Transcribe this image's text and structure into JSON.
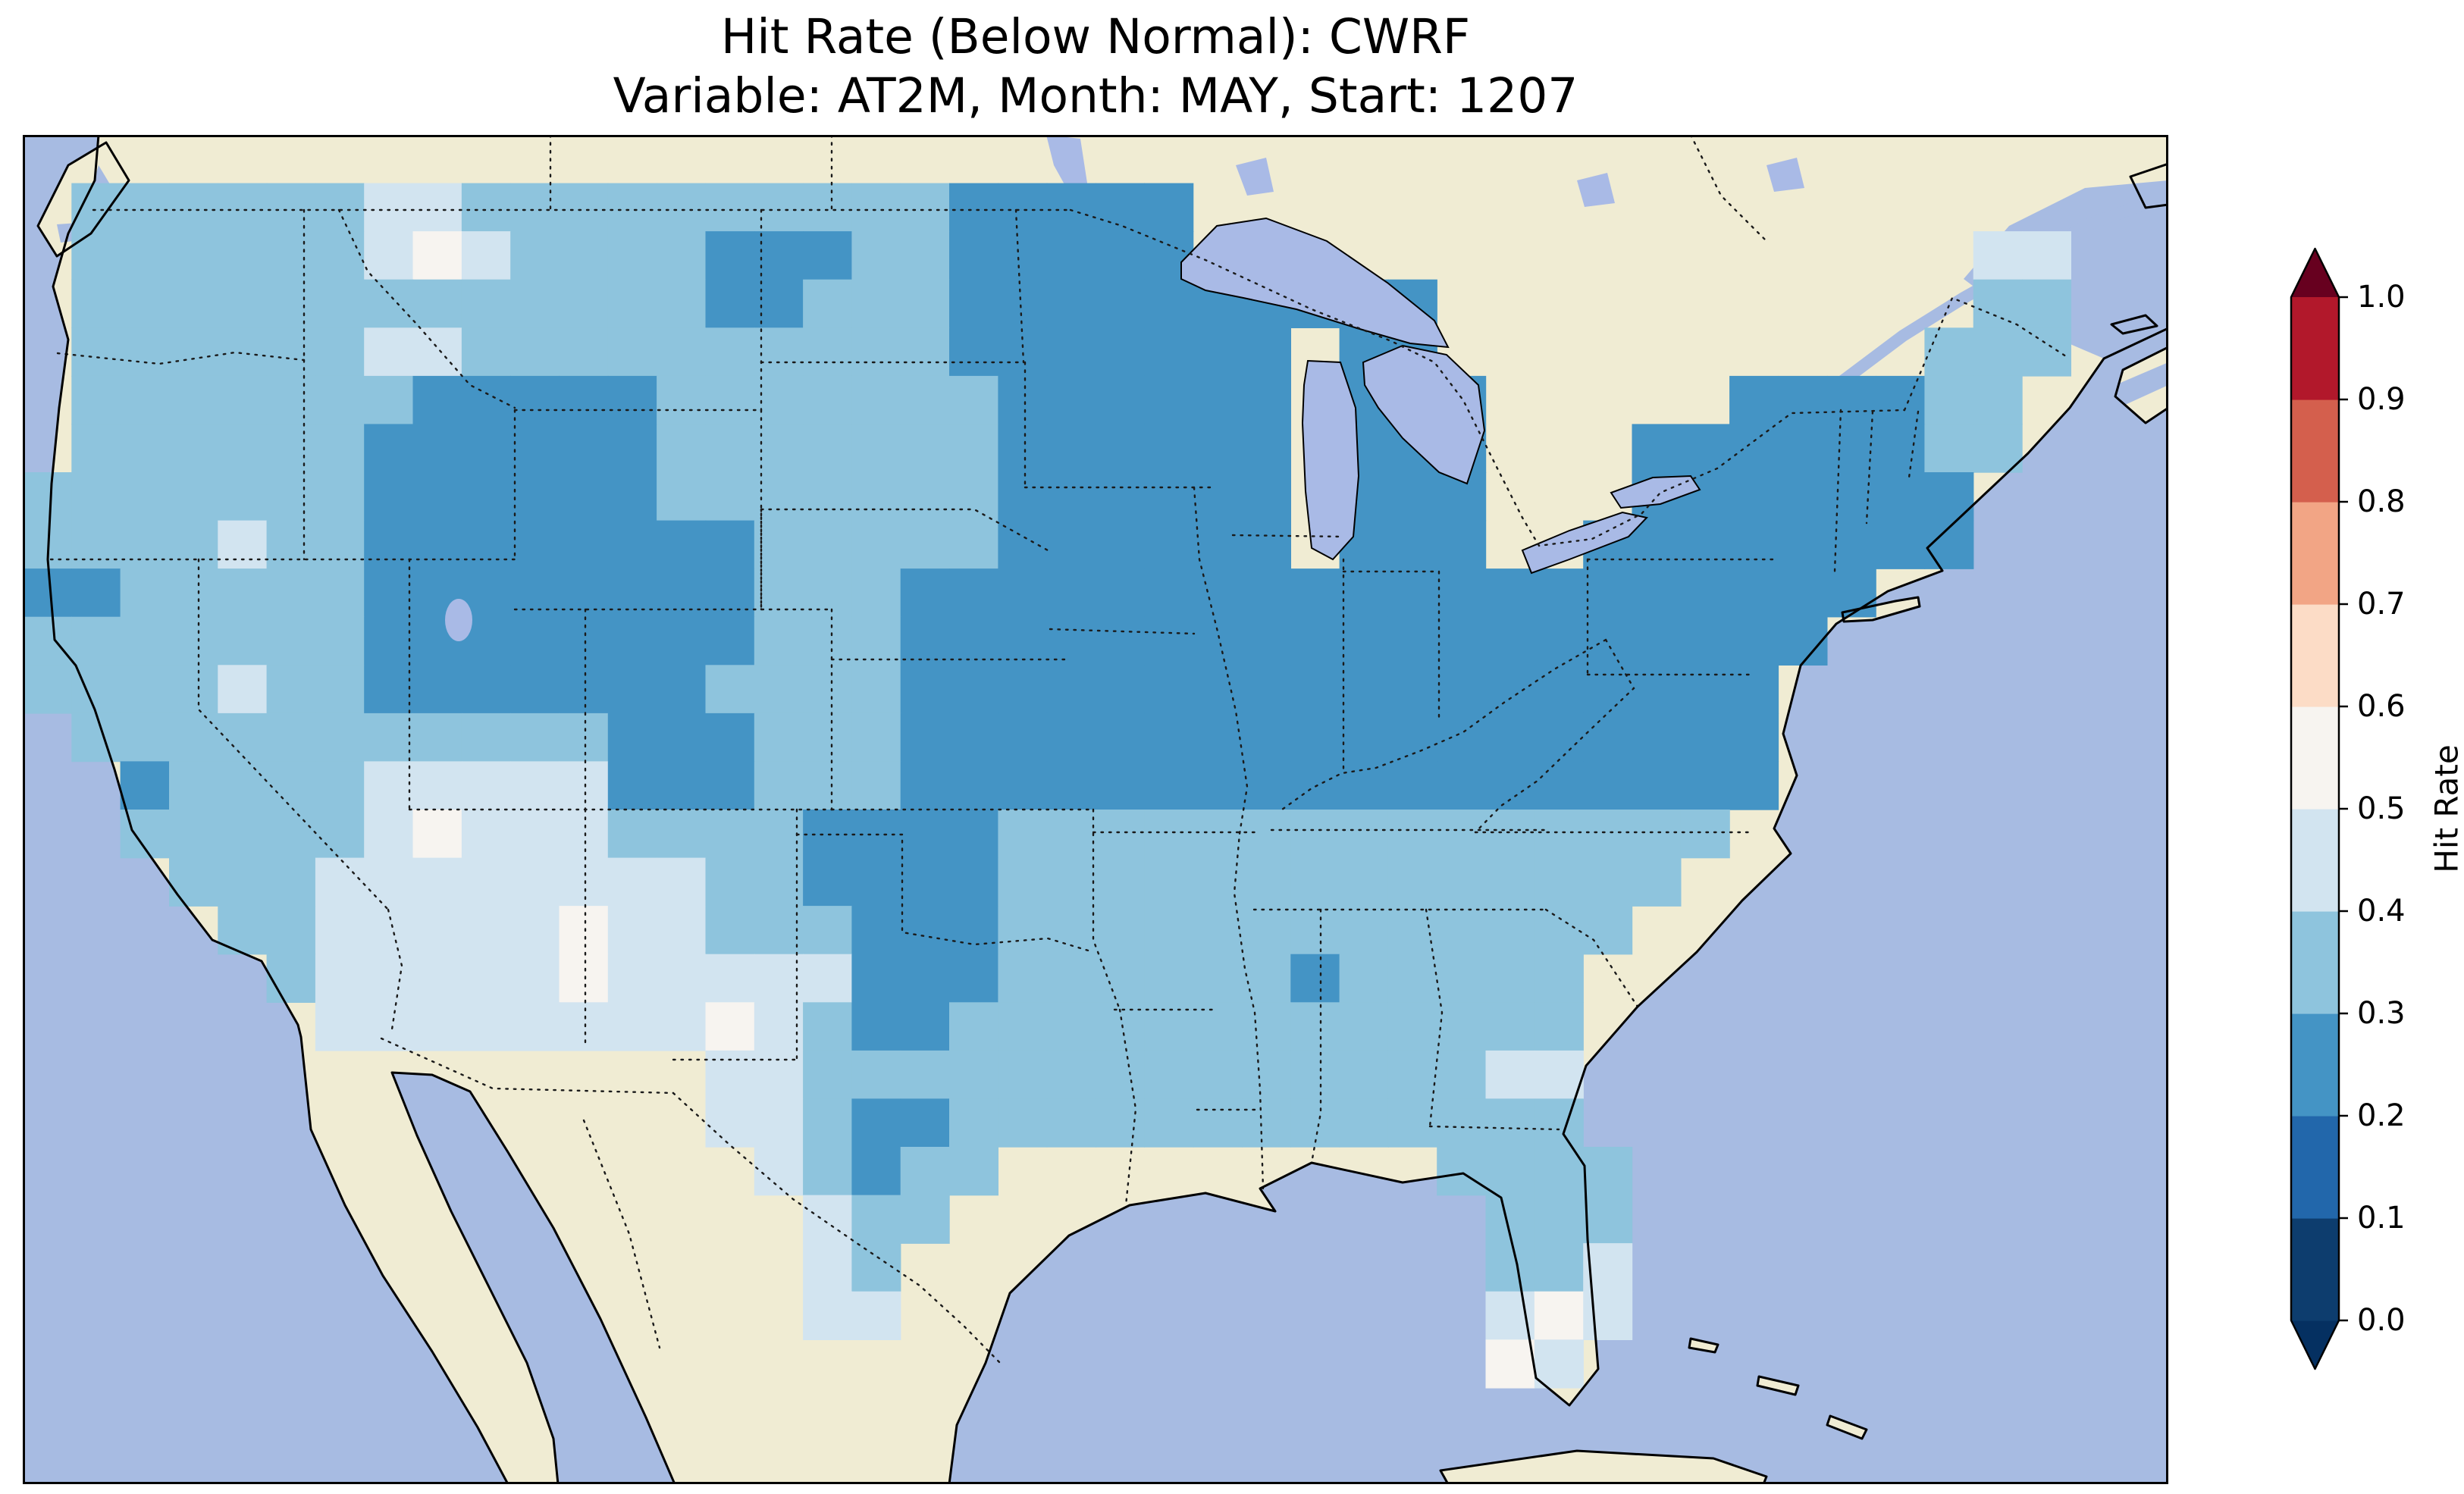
{
  "figure": {
    "title_line1": "Hit Rate (Below Normal): CWRF",
    "title_line2": "Variable: AT2M, Month: MAY, Start: 1207"
  },
  "map": {
    "colors": {
      "ocean": "#a7bbe2",
      "lake": "#a9bae6",
      "land": "#f0ecd3",
      "coastline": "#000000",
      "state_border": "#1a1a1a",
      "frame": "#000000"
    }
  },
  "chart_data": {
    "type": "heatmap",
    "title": "Hit Rate (Below Normal): CWRF",
    "subtitle": "Variable: AT2M, Month: MAY, Start: 1207",
    "metric": "Hit Rate",
    "category": "Below Normal",
    "model": "CWRF",
    "variable": "AT2M",
    "month": "MAY",
    "start": "1207",
    "colorbar_label": "Hit Rate",
    "scale_min": 0.0,
    "scale_max": 1.0,
    "band_size": 0.1,
    "tick_labels_bottom_to_top": [
      "0.0",
      "0.1",
      "0.2",
      "0.3",
      "0.4",
      "0.5",
      "0.6",
      "0.7",
      "0.8",
      "0.9",
      "1.0"
    ],
    "band_colors_bottom_to_top": [
      "#0d3d6e",
      "#2267ab",
      "#4494c5",
      "#8ec4dd",
      "#d2e4f0",
      "#f7f4f0",
      "#fcdcc6",
      "#f2a585",
      "#d45f4d",
      "#b2182b"
    ],
    "under_arrow_color": "#053061",
    "over_arrow_color": "#67001f",
    "map_extent": {
      "lon_min": -125,
      "lon_max": -64,
      "lat_min": 23.5,
      "lat_max": 50.5
    },
    "grid": {
      "cols": 44,
      "rows": 28,
      "cell_legend": {
        "a": "0.2-0.3",
        "b": "0.3-0.4",
        "c": "0.4-0.5",
        "d": "0.5-0.6",
        ".": "no data"
      },
      "char_to_band": {
        "a": 2,
        "b": 3,
        "c": 4,
        "d": 5
      },
      "rows_data": [
        "............................................",
        ".bbbbbbccbbbbbbbbbbaaaaa....................",
        ".bbbbbbcdcbbbbaaabbaaaaa................cc..",
        ".bbbbbbbbbbbbbaabbbaaaaaaaaaa...........bb..",
        ".bbbbbbccbbbbbbbbbbaaaaaaa.aa..........bbb..",
        ".bbbbbbbaaaaabbbbbbbaaaaaa.aaa.....aaaabb...",
        ".bbbbbbaaaaaabbbbbbbaaaaaa.aaa...aaaaaabb...",
        "bbbbbbbaaaaaabbbbbbbaaaaaa.aaa...aaaaaaa....",
        "bbbbcbbaaaaaaaabbbbbaaaaaa.aaa..aaaaaaaa....",
        "aabbbbbaaaaaaaabbbaaaaaaaaaaaaaaaaaaaa......",
        "bbbbbbbaaaaaaaabbbaaaaaaaaaaaaaaaaaaa.......",
        "bbbbcbbaaaaaaabbbbaaaaaaaaaaaaaaaaaa........",
        ".bbbbbbbbbbbaaabbbaaaaaaaaaaaaaaaaaa........",
        "..abbbbcccccaaabbbaaaaaaaaaaaaaaaaaa........",
        "..bbbbbcdcccbbbbaaaabbbbbbbbbbbbbbb.........",
        "...bbbccccccccbbaaaabbbbbbbbbbbbbb..........",
        "....bbcccccdccbbbaaabbbbbbbbbbbbb...........",
        ".....bcccccdcccccaaabbbbbbabbbbb............",
        "......ccccccccdcbaabbbbbbbbbbbbb............",
        "..............ccbbbbbbbbbbbbbbcc............",
        "..............ccbaabbbbbbbbbbbbb............",
        "...............cbabb.........bbbb...........",
        "................cbb...........bbb...........",
        "................cb............bbc...........",
        "................cc............cdc...........",
        "..............................dc............",
        "............................................",
        "............................................"
      ]
    }
  }
}
